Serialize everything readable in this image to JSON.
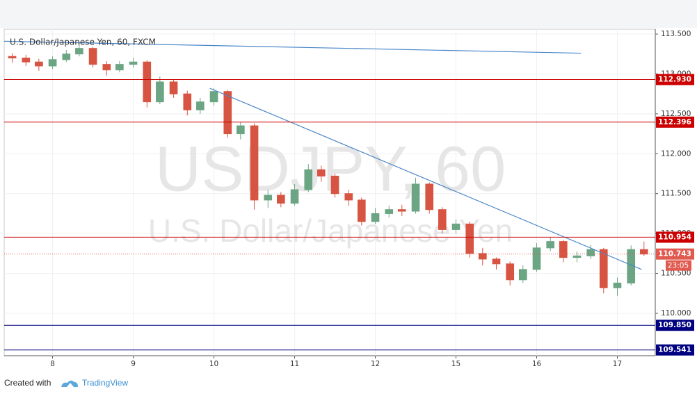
{
  "chart_data": {
    "type": "candlestick",
    "title": "U.S. Dollar/Japanese Yen, 60, FXCM",
    "watermark": "USDJPY, 60",
    "watermark_subtitle": "U.S. Dollar/Japanese Yen",
    "up_color": "#6ba583",
    "down_color": "#d75442",
    "x": [
      -0.5,
      -0.33,
      -0.17,
      0,
      0.17,
      0.33,
      0.5,
      0.67,
      0.83,
      1,
      1.17,
      1.33,
      1.5,
      1.67,
      1.83,
      2,
      2.17,
      2.33,
      2.5,
      2.67,
      2.83,
      3,
      3.17,
      3.33,
      3.5,
      3.67,
      3.83,
      4,
      4.17,
      4.33,
      4.5,
      4.67,
      4.83,
      5,
      5.17,
      5.33,
      5.5,
      5.67,
      5.83,
      6,
      6.17,
      6.33,
      6.5,
      6.67,
      6.83,
      7,
      7.17,
      7.33
    ],
    "open": [
      113.22,
      113.2,
      113.15,
      113.1,
      113.18,
      113.25,
      113.32,
      113.12,
      113.05,
      113.12,
      113.15,
      112.65,
      112.9,
      112.75,
      112.55,
      112.65,
      112.78,
      112.25,
      112.35,
      111.42,
      111.48,
      111.38,
      111.55,
      111.8,
      111.72,
      111.5,
      111.42,
      111.15,
      111.25,
      111.3,
      111.28,
      111.62,
      111.3,
      111.05,
      111.12,
      110.75,
      110.68,
      110.62,
      110.42,
      110.55,
      110.82,
      110.9,
      110.7,
      110.72,
      110.8,
      110.32,
      110.38,
      110.8
    ],
    "close": [
      113.2,
      113.15,
      113.1,
      113.18,
      113.25,
      113.32,
      113.12,
      113.05,
      113.12,
      113.15,
      112.65,
      112.9,
      112.75,
      112.55,
      112.65,
      112.78,
      112.25,
      112.35,
      111.42,
      111.48,
      111.38,
      111.55,
      111.8,
      111.72,
      111.5,
      111.42,
      111.15,
      111.25,
      111.3,
      111.28,
      111.62,
      111.3,
      111.05,
      111.12,
      110.75,
      110.68,
      110.62,
      110.42,
      110.55,
      110.82,
      110.9,
      110.7,
      110.72,
      110.8,
      110.32,
      110.38,
      110.8,
      110.743
    ],
    "high": [
      113.26,
      113.24,
      113.19,
      113.22,
      113.3,
      113.4,
      113.34,
      113.16,
      113.16,
      113.2,
      113.17,
      112.97,
      112.93,
      112.79,
      112.7,
      112.82,
      112.8,
      112.4,
      112.38,
      111.55,
      111.52,
      111.62,
      111.87,
      111.85,
      111.75,
      111.55,
      111.45,
      111.32,
      111.35,
      111.36,
      111.7,
      111.64,
      111.33,
      111.18,
      111.15,
      110.82,
      110.7,
      110.65,
      110.6,
      110.88,
      110.95,
      110.92,
      110.78,
      110.86,
      110.82,
      110.45,
      110.85,
      110.9
    ],
    "low": [
      113.14,
      113.1,
      113.04,
      113.06,
      113.15,
      113.22,
      113.08,
      112.98,
      113.02,
      113.08,
      112.58,
      112.62,
      112.7,
      112.48,
      112.5,
      112.6,
      112.2,
      112.18,
      111.3,
      111.32,
      111.33,
      111.35,
      111.52,
      111.65,
      111.45,
      111.35,
      111.1,
      111.12,
      111.2,
      111.22,
      111.25,
      111.25,
      111.0,
      111.0,
      110.7,
      110.6,
      110.55,
      110.35,
      110.38,
      110.52,
      110.78,
      110.64,
      110.64,
      110.68,
      110.25,
      110.22,
      110.35,
      110.72
    ],
    "xlim": [
      -0.6,
      7.47
    ],
    "xticks": [
      {
        "value": 0,
        "label": "8"
      },
      {
        "value": 1,
        "label": "9"
      },
      {
        "value": 2,
        "label": "10"
      },
      {
        "value": 3,
        "label": "11"
      },
      {
        "value": 4,
        "label": "12"
      },
      {
        "value": 5,
        "label": "15"
      },
      {
        "value": 6,
        "label": "16"
      },
      {
        "value": 7,
        "label": "17"
      }
    ],
    "ylim": [
      109.469,
      113.561
    ],
    "yticks": [
      {
        "value": 113.5,
        "label": "113.500"
      },
      {
        "value": 113,
        "label": "113.000"
      },
      {
        "value": 112.5,
        "label": "112.500"
      },
      {
        "value": 112,
        "label": "112.000"
      },
      {
        "value": 111.5,
        "label": "111.500"
      },
      {
        "value": 111,
        "label": "111.000"
      },
      {
        "value": 110.5,
        "label": "110.500"
      },
      {
        "value": 110,
        "label": "110.000"
      }
    ],
    "grid": true,
    "trendlines": [
      {
        "color": "#4a86c8",
        "x": [
          -0.6,
          6.55
        ],
        "y": [
          113.41,
          113.26
        ]
      },
      {
        "color": "#4a86c8",
        "x": [
          1.95,
          7.3
        ],
        "y": [
          112.82,
          110.55
        ]
      }
    ],
    "levels": [
      {
        "value": 112.93,
        "label": "112.930",
        "color": "#cc0000"
      },
      {
        "value": 112.396,
        "label": "112.396",
        "color": "#cc0000"
      },
      {
        "value": 110.954,
        "label": "110.954",
        "color": "#cc0000"
      },
      {
        "value": 109.85,
        "label": "109.850",
        "color": "#000080"
      },
      {
        "value": 109.541,
        "label": "109.541",
        "color": "#000080"
      }
    ],
    "last_price": {
      "value": 110.743,
      "label": "110.743",
      "countdown": "23:05",
      "color": "#e05a4f"
    }
  },
  "footer": {
    "prefix": "Created with",
    "brand": "TradingView"
  }
}
